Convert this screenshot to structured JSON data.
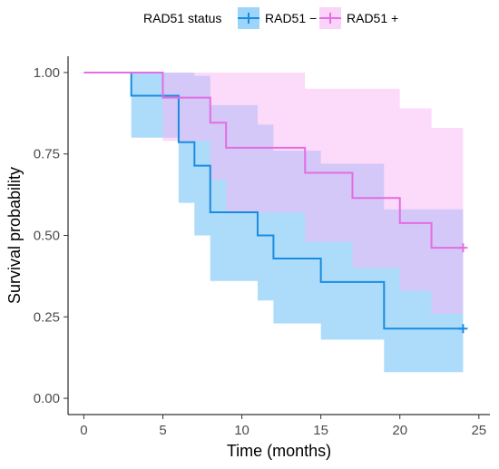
{
  "chart_data": {
    "type": "line",
    "subtype": "kaplan-meier-step",
    "xlabel": "Time (months)",
    "ylabel": "Survival probability",
    "xlim": [
      -1,
      25.7
    ],
    "ylim": [
      -0.05,
      1.05
    ],
    "x_ticks": [
      0,
      5,
      10,
      15,
      20,
      25
    ],
    "x_tick_labels": [
      "0",
      "5",
      "10",
      "15",
      "20",
      "25"
    ],
    "y_ticks": [
      0,
      0.25,
      0.5,
      0.75,
      1.0
    ],
    "y_tick_labels": [
      "0.00",
      "0.25",
      "0.50",
      "0.75",
      "1.00"
    ],
    "grid": false,
    "legend": {
      "title": "RAD51 status",
      "placement": "top"
    },
    "series": [
      {
        "name": "RAD51 −",
        "color": "#1a8ce0",
        "ci_color": "#5bb8f5",
        "steps": [
          {
            "x": 0,
            "y": 1.0,
            "lower": 1.0,
            "upper": 1.0
          },
          {
            "x": 3,
            "y": 0.929,
            "lower": 0.8,
            "upper": 1.0
          },
          {
            "x": 6,
            "y": 0.786,
            "lower": 0.6,
            "upper": 1.0
          },
          {
            "x": 7,
            "y": 0.714,
            "lower": 0.5,
            "upper": 0.99
          },
          {
            "x": 8,
            "y": 0.571,
            "lower": 0.36,
            "upper": 0.9
          },
          {
            "x": 11,
            "y": 0.5,
            "lower": 0.3,
            "upper": 0.84
          },
          {
            "x": 12,
            "y": 0.429,
            "lower": 0.23,
            "upper": 0.76
          },
          {
            "x": 15,
            "y": 0.357,
            "lower": 0.18,
            "upper": 0.72
          },
          {
            "x": 19,
            "y": 0.214,
            "lower": 0.08,
            "upper": 0.58
          }
        ],
        "end_x": 24,
        "censored": [
          {
            "x": 24,
            "y": 0.214
          }
        ]
      },
      {
        "name": "RAD51 +",
        "color": "#e36de3",
        "ci_color": "#f9b5f3",
        "steps": [
          {
            "x": 0,
            "y": 1.0,
            "lower": 1.0,
            "upper": 1.0
          },
          {
            "x": 5,
            "y": 0.923,
            "lower": 0.79,
            "upper": 1.0
          },
          {
            "x": 8,
            "y": 0.846,
            "lower": 0.67,
            "upper": 1.0
          },
          {
            "x": 9,
            "y": 0.769,
            "lower": 0.57,
            "upper": 1.0
          },
          {
            "x": 14,
            "y": 0.692,
            "lower": 0.48,
            "upper": 0.95
          },
          {
            "x": 17,
            "y": 0.615,
            "lower": 0.4,
            "upper": 0.95
          },
          {
            "x": 20,
            "y": 0.538,
            "lower": 0.33,
            "upper": 0.89
          },
          {
            "x": 22,
            "y": 0.462,
            "lower": 0.26,
            "upper": 0.83
          }
        ],
        "end_x": 24,
        "censored": [
          {
            "x": 24,
            "y": 0.462
          }
        ]
      }
    ]
  }
}
